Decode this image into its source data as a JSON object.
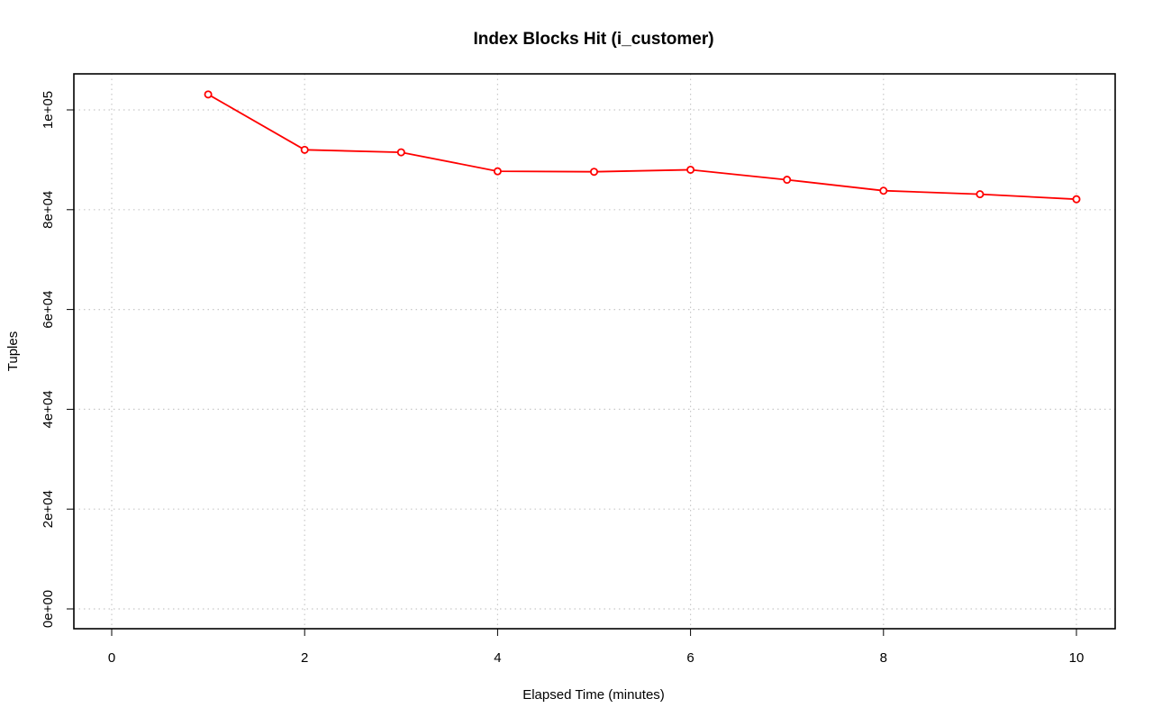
{
  "chart_data": {
    "type": "line",
    "title": "Index Blocks Hit (i_customer)",
    "xlabel": "Elapsed Time (minutes)",
    "ylabel": "Tuples",
    "xlim": [
      0,
      10
    ],
    "ylim": [
      0,
      100000
    ],
    "x_ticks": [
      0,
      2,
      4,
      6,
      8,
      10
    ],
    "x_tick_labels": [
      "0",
      "2",
      "4",
      "6",
      "8",
      "10"
    ],
    "y_ticks": [
      0,
      20000,
      40000,
      60000,
      80000,
      100000
    ],
    "y_tick_labels": [
      "0e+00",
      "2e+04",
      "4e+04",
      "6e+04",
      "8e+04",
      "1e+05"
    ],
    "grid": true,
    "series": [
      {
        "color": "#ff0000",
        "marker": "open-circle",
        "x": [
          1,
          2,
          3,
          4,
          5,
          6,
          7,
          8,
          9,
          10
        ],
        "y": [
          103100,
          92000,
          91500,
          87700,
          87600,
          88000,
          86000,
          83800,
          83100,
          82100
        ]
      }
    ]
  }
}
